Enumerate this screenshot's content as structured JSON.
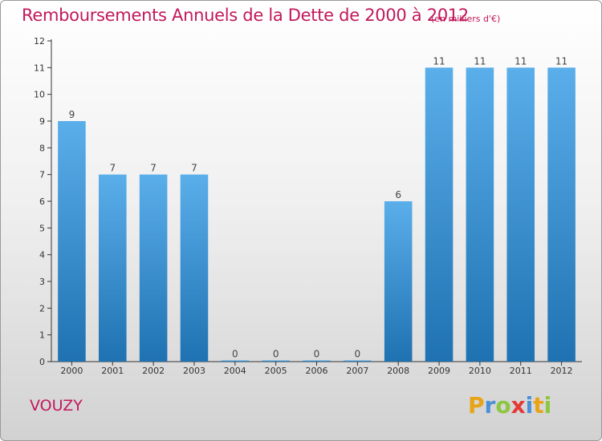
{
  "title": "Remboursements Annuels de la Dette de 2000 à 2012",
  "unit_note": "(en milliers d'€)",
  "commune": "VOUZY",
  "logo": {
    "text": "Proxiti",
    "letters": [
      {
        "ch": "P",
        "color": "#e8a317"
      },
      {
        "ch": "r",
        "color": "#4a90d9"
      },
      {
        "ch": "o",
        "color": "#8dc63f"
      },
      {
        "ch": "x",
        "color": "#e53935"
      },
      {
        "ch": "i",
        "color": "#4a90d9"
      },
      {
        "ch": "t",
        "color": "#e8a317"
      },
      {
        "ch": "i",
        "color": "#8dc63f"
      }
    ]
  },
  "colors": {
    "bar_top": "#5aaeea",
    "bar_bottom": "#1f72b1",
    "accent": "#c2185b"
  },
  "chart_data": {
    "type": "bar",
    "categories": [
      "2000",
      "2001",
      "2002",
      "2003",
      "2004",
      "2005",
      "2006",
      "2007",
      "2008",
      "2009",
      "2010",
      "2011",
      "2012"
    ],
    "values": [
      9,
      7,
      7,
      7,
      0,
      0,
      0,
      0,
      6,
      11,
      11,
      11,
      11
    ],
    "data_labels": [
      "9",
      "7",
      "7",
      "7",
      "0",
      "0",
      "0",
      "0",
      "6",
      "11",
      "11",
      "11",
      "11"
    ],
    "yticks": [
      "0",
      "1",
      "2",
      "3",
      "4",
      "5",
      "6",
      "7",
      "8",
      "9",
      "10",
      "11",
      "12"
    ],
    "ylim": [
      0,
      12
    ],
    "grid": false,
    "legend": "none"
  }
}
